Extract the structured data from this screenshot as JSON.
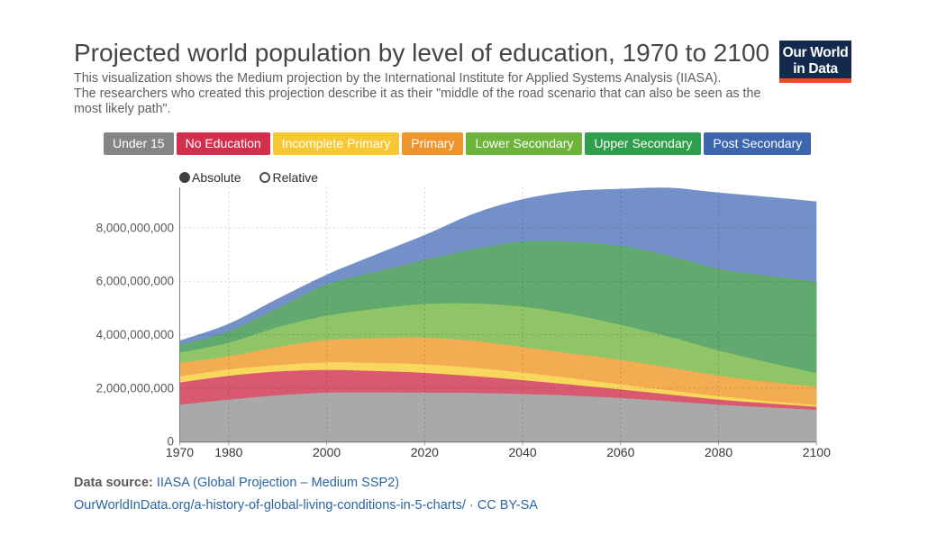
{
  "header": {
    "title": "Projected world population by level of education, 1970 to 2100",
    "subtitle_lines": [
      "This visualization shows the Medium projection by the International Institute for Applied Systems Analysis (IIASA).",
      "The researchers who created this projection describe it as their \"middle of the road scenario that can also be seen as the",
      "most likely path\"."
    ],
    "logo": {
      "line1": "Our World",
      "line2": "in Data",
      "bg_color": "#13294d",
      "bar_color": "#ee4c23"
    }
  },
  "controls": {
    "mode_options": [
      {
        "label": "Absolute",
        "selected": true
      },
      {
        "label": "Relative",
        "selected": false
      }
    ]
  },
  "footer": {
    "datasource_label": "Data source:",
    "datasource_link": "IIASA (Global Projection – Medium SSP2)",
    "url": "OurWorldInData.org/a-history-of-global-living-conditions-in-5-charts/",
    "separator": "·",
    "license": "CC BY-SA",
    "link_color": "#2a65a0"
  },
  "chart_data": {
    "type": "area",
    "stacked": true,
    "title": "Projected world population by level of education, 1970 to 2100",
    "xlabel": "",
    "ylabel": "",
    "x": [
      1970,
      1980,
      1990,
      2000,
      2010,
      2020,
      2030,
      2040,
      2050,
      2060,
      2070,
      2080,
      2090,
      2100
    ],
    "unit": "people (billions)",
    "series": [
      {
        "name": "Under 15",
        "area_color": "#a9a9a9",
        "legend_color": "#858585",
        "values": [
          1.38,
          1.57,
          1.73,
          1.83,
          1.84,
          1.83,
          1.82,
          1.78,
          1.72,
          1.63,
          1.51,
          1.38,
          1.28,
          1.19
        ]
      },
      {
        "name": "No Education",
        "area_color": "#d95970",
        "legend_color": "#d32f4d",
        "values": [
          0.83,
          0.89,
          0.89,
          0.85,
          0.8,
          0.74,
          0.63,
          0.52,
          0.41,
          0.32,
          0.25,
          0.19,
          0.15,
          0.11
        ]
      },
      {
        "name": "Incomplete Primary",
        "area_color": "#f9d65c",
        "legend_color": "#f7c831",
        "values": [
          0.23,
          0.24,
          0.24,
          0.28,
          0.3,
          0.32,
          0.31,
          0.28,
          0.24,
          0.19,
          0.15,
          0.13,
          0.09,
          0.07
        ]
      },
      {
        "name": "Primary",
        "area_color": "#f4ac53",
        "legend_color": "#ef952d",
        "values": [
          0.51,
          0.49,
          0.68,
          0.84,
          0.93,
          1.0,
          1.01,
          0.95,
          0.93,
          0.92,
          0.86,
          0.77,
          0.72,
          0.68
        ]
      },
      {
        "name": "Lower Secondary",
        "area_color": "#8fc566",
        "legend_color": "#6db33c",
        "values": [
          0.38,
          0.51,
          0.74,
          0.91,
          1.1,
          1.26,
          1.4,
          1.52,
          1.46,
          1.31,
          1.15,
          0.94,
          0.73,
          0.51
        ]
      },
      {
        "name": "Upper Secondary",
        "area_color": "#61a96e",
        "legend_color": "#2f9e4d",
        "values": [
          0.29,
          0.43,
          0.71,
          1.17,
          1.38,
          1.64,
          2.03,
          2.44,
          2.71,
          2.96,
          3.03,
          3.06,
          3.23,
          3.44
        ]
      },
      {
        "name": "Post Secondary",
        "area_color": "#7390c9",
        "legend_color": "#3d66ae",
        "values": [
          0.16,
          0.28,
          0.36,
          0.37,
          0.65,
          0.94,
          1.33,
          1.58,
          1.9,
          2.13,
          2.55,
          2.85,
          2.96,
          2.99
        ]
      }
    ],
    "x_axis": {
      "ticks": [
        1970,
        1980,
        2000,
        2020,
        2040,
        2060,
        2080,
        2100
      ],
      "gridline_years": [
        1980,
        2000,
        2020,
        2040,
        2060,
        2080
      ],
      "range": [
        1970,
        2100
      ]
    },
    "y_axis": {
      "ticks": [
        0,
        2000000000,
        4000000000,
        6000000000,
        8000000000
      ],
      "tick_labels": [
        "0",
        "2,000,000,000",
        "4,000,000,000",
        "6,000,000,000",
        "8,000,000,000"
      ],
      "range_billions": [
        0,
        9.5
      ]
    },
    "grid": true,
    "legend_position": "top"
  }
}
